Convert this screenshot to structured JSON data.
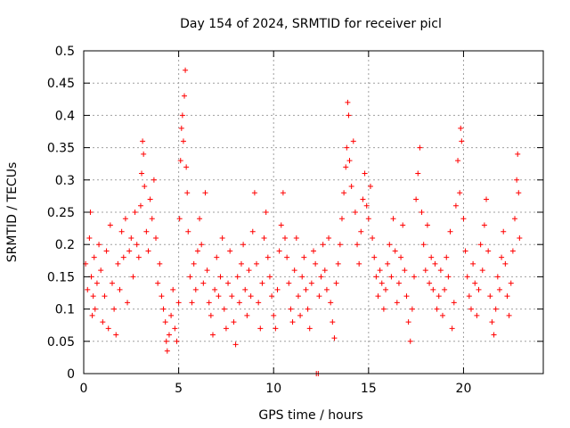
{
  "colors": {
    "series": "#ff0000",
    "axis": "#000000",
    "grid": "#a0a0a0"
  },
  "chart_data": {
    "type": "scatter",
    "title": "Day 154 of 2024, SRMTID for receiver picl",
    "xlabel": "GPS time / hours",
    "ylabel": "SRMTID / TECUs",
    "xlim": [
      0,
      24.2
    ],
    "ylim": [
      0,
      0.5
    ],
    "xticks": [
      0,
      5,
      10,
      15,
      20
    ],
    "yticks": [
      0,
      0.05,
      0.1,
      0.15,
      0.2,
      0.25,
      0.3,
      0.35,
      0.4,
      0.45,
      0.5
    ],
    "xtick_labels": [
      "0",
      "5",
      "10",
      "15",
      "20"
    ],
    "ytick_labels": [
      "0",
      "0.05",
      "0.1",
      "0.15",
      "0.2",
      "0.25",
      "0.3",
      "0.35",
      "0.4",
      "0.45",
      "0.5"
    ],
    "grid": true,
    "marker": "plus",
    "series": [
      {
        "name": "SRMTID",
        "points": [
          [
            0.1,
            0.17
          ],
          [
            0.2,
            0.13
          ],
          [
            0.3,
            0.21
          ],
          [
            0.35,
            0.25
          ],
          [
            0.4,
            0.15
          ],
          [
            0.45,
            0.09
          ],
          [
            0.5,
            0.12
          ],
          [
            0.55,
            0.18
          ],
          [
            0.6,
            0.1
          ],
          [
            0.7,
            0.14
          ],
          [
            0.8,
            0.2
          ],
          [
            0.9,
            0.16
          ],
          [
            1.0,
            0.08
          ],
          [
            1.1,
            0.12
          ],
          [
            1.2,
            0.19
          ],
          [
            1.3,
            0.07
          ],
          [
            1.4,
            0.23
          ],
          [
            1.5,
            0.14
          ],
          [
            1.6,
            0.1
          ],
          [
            1.7,
            0.06
          ],
          [
            1.8,
            0.17
          ],
          [
            1.9,
            0.13
          ],
          [
            2.0,
            0.22
          ],
          [
            2.1,
            0.18
          ],
          [
            2.2,
            0.24
          ],
          [
            2.3,
            0.11
          ],
          [
            2.4,
            0.19
          ],
          [
            2.5,
            0.21
          ],
          [
            2.6,
            0.15
          ],
          [
            2.7,
            0.25
          ],
          [
            2.8,
            0.2
          ],
          [
            2.9,
            0.18
          ],
          [
            3.0,
            0.26
          ],
          [
            3.05,
            0.31
          ],
          [
            3.1,
            0.36
          ],
          [
            3.15,
            0.34
          ],
          [
            3.2,
            0.29
          ],
          [
            3.3,
            0.22
          ],
          [
            3.4,
            0.19
          ],
          [
            3.5,
            0.27
          ],
          [
            3.6,
            0.24
          ],
          [
            3.7,
            0.3
          ],
          [
            3.8,
            0.21
          ],
          [
            3.9,
            0.14
          ],
          [
            4.0,
            0.17
          ],
          [
            4.1,
            0.12
          ],
          [
            4.2,
            0.1
          ],
          [
            4.3,
            0.08
          ],
          [
            4.35,
            0.05
          ],
          [
            4.4,
            0.035
          ],
          [
            4.5,
            0.06
          ],
          [
            4.6,
            0.09
          ],
          [
            4.7,
            0.13
          ],
          [
            4.8,
            0.07
          ],
          [
            4.9,
            0.05
          ],
          [
            5.0,
            0.11
          ],
          [
            5.05,
            0.24
          ],
          [
            5.1,
            0.33
          ],
          [
            5.15,
            0.38
          ],
          [
            5.2,
            0.4
          ],
          [
            5.25,
            0.36
          ],
          [
            5.3,
            0.43
          ],
          [
            5.35,
            0.47
          ],
          [
            5.4,
            0.32
          ],
          [
            5.45,
            0.28
          ],
          [
            5.5,
            0.22
          ],
          [
            5.6,
            0.15
          ],
          [
            5.7,
            0.11
          ],
          [
            5.8,
            0.17
          ],
          [
            5.9,
            0.13
          ],
          [
            6.0,
            0.19
          ],
          [
            6.1,
            0.24
          ],
          [
            6.2,
            0.2
          ],
          [
            6.3,
            0.14
          ],
          [
            6.4,
            0.28
          ],
          [
            6.5,
            0.16
          ],
          [
            6.6,
            0.11
          ],
          [
            6.7,
            0.09
          ],
          [
            6.8,
            0.06
          ],
          [
            6.9,
            0.13
          ],
          [
            7.0,
            0.18
          ],
          [
            7.1,
            0.12
          ],
          [
            7.2,
            0.15
          ],
          [
            7.3,
            0.21
          ],
          [
            7.4,
            0.1
          ],
          [
            7.5,
            0.07
          ],
          [
            7.6,
            0.14
          ],
          [
            7.7,
            0.19
          ],
          [
            7.8,
            0.12
          ],
          [
            7.9,
            0.08
          ],
          [
            8.0,
            0.045
          ],
          [
            8.1,
            0.15
          ],
          [
            8.2,
            0.11
          ],
          [
            8.3,
            0.17
          ],
          [
            8.4,
            0.2
          ],
          [
            8.5,
            0.13
          ],
          [
            8.6,
            0.09
          ],
          [
            8.7,
            0.16
          ],
          [
            8.8,
            0.12
          ],
          [
            8.9,
            0.22
          ],
          [
            9.0,
            0.28
          ],
          [
            9.1,
            0.17
          ],
          [
            9.2,
            0.11
          ],
          [
            9.3,
            0.07
          ],
          [
            9.4,
            0.14
          ],
          [
            9.5,
            0.21
          ],
          [
            9.6,
            0.25
          ],
          [
            9.7,
            0.18
          ],
          [
            9.8,
            0.15
          ],
          [
            9.9,
            0.12
          ],
          [
            10.0,
            0.09
          ],
          [
            10.1,
            0.07
          ],
          [
            10.2,
            0.13
          ],
          [
            10.3,
            0.19
          ],
          [
            10.4,
            0.23
          ],
          [
            10.5,
            0.28
          ],
          [
            10.6,
            0.21
          ],
          [
            10.7,
            0.18
          ],
          [
            10.8,
            0.14
          ],
          [
            10.9,
            0.1
          ],
          [
            11.0,
            0.08
          ],
          [
            11.1,
            0.16
          ],
          [
            11.2,
            0.21
          ],
          [
            11.3,
            0.12
          ],
          [
            11.4,
            0.09
          ],
          [
            11.5,
            0.15
          ],
          [
            11.6,
            0.18
          ],
          [
            11.7,
            0.13
          ],
          [
            11.8,
            0.1
          ],
          [
            11.9,
            0.07
          ],
          [
            12.0,
            0.14
          ],
          [
            12.1,
            0.19
          ],
          [
            12.2,
            0.17
          ],
          [
            12.25,
            0.0
          ],
          [
            12.35,
            0.0
          ],
          [
            12.4,
            0.12
          ],
          [
            12.5,
            0.15
          ],
          [
            12.6,
            0.2
          ],
          [
            12.7,
            0.16
          ],
          [
            12.8,
            0.13
          ],
          [
            12.9,
            0.21
          ],
          [
            13.0,
            0.11
          ],
          [
            13.1,
            0.08
          ],
          [
            13.2,
            0.055
          ],
          [
            13.3,
            0.14
          ],
          [
            13.4,
            0.17
          ],
          [
            13.5,
            0.2
          ],
          [
            13.6,
            0.24
          ],
          [
            13.7,
            0.28
          ],
          [
            13.8,
            0.32
          ],
          [
            13.85,
            0.35
          ],
          [
            13.9,
            0.42
          ],
          [
            13.95,
            0.4
          ],
          [
            14.0,
            0.33
          ],
          [
            14.1,
            0.29
          ],
          [
            14.2,
            0.36
          ],
          [
            14.3,
            0.25
          ],
          [
            14.4,
            0.2
          ],
          [
            14.5,
            0.17
          ],
          [
            14.6,
            0.22
          ],
          [
            14.7,
            0.27
          ],
          [
            14.8,
            0.31
          ],
          [
            14.9,
            0.26
          ],
          [
            15.0,
            0.24
          ],
          [
            15.1,
            0.29
          ],
          [
            15.2,
            0.21
          ],
          [
            15.3,
            0.18
          ],
          [
            15.4,
            0.15
          ],
          [
            15.5,
            0.12
          ],
          [
            15.6,
            0.16
          ],
          [
            15.7,
            0.14
          ],
          [
            15.8,
            0.1
          ],
          [
            15.9,
            0.13
          ],
          [
            16.0,
            0.17
          ],
          [
            16.1,
            0.2
          ],
          [
            16.2,
            0.15
          ],
          [
            16.3,
            0.24
          ],
          [
            16.4,
            0.19
          ],
          [
            16.5,
            0.11
          ],
          [
            16.6,
            0.14
          ],
          [
            16.7,
            0.18
          ],
          [
            16.8,
            0.23
          ],
          [
            16.9,
            0.16
          ],
          [
            17.0,
            0.12
          ],
          [
            17.1,
            0.08
          ],
          [
            17.2,
            0.05
          ],
          [
            17.3,
            0.1
          ],
          [
            17.4,
            0.15
          ],
          [
            17.5,
            0.27
          ],
          [
            17.6,
            0.31
          ],
          [
            17.7,
            0.35
          ],
          [
            17.8,
            0.25
          ],
          [
            17.9,
            0.2
          ],
          [
            18.0,
            0.16
          ],
          [
            18.1,
            0.23
          ],
          [
            18.2,
            0.14
          ],
          [
            18.3,
            0.18
          ],
          [
            18.4,
            0.13
          ],
          [
            18.5,
            0.17
          ],
          [
            18.6,
            0.1
          ],
          [
            18.7,
            0.12
          ],
          [
            18.8,
            0.16
          ],
          [
            18.9,
            0.09
          ],
          [
            19.0,
            0.13
          ],
          [
            19.1,
            0.18
          ],
          [
            19.2,
            0.15
          ],
          [
            19.3,
            0.22
          ],
          [
            19.4,
            0.07
          ],
          [
            19.5,
            0.11
          ],
          [
            19.6,
            0.26
          ],
          [
            19.7,
            0.33
          ],
          [
            19.8,
            0.28
          ],
          [
            19.85,
            0.38
          ],
          [
            19.9,
            0.36
          ],
          [
            20.0,
            0.24
          ],
          [
            20.1,
            0.19
          ],
          [
            20.2,
            0.15
          ],
          [
            20.3,
            0.12
          ],
          [
            20.4,
            0.1
          ],
          [
            20.5,
            0.17
          ],
          [
            20.6,
            0.14
          ],
          [
            20.7,
            0.09
          ],
          [
            20.8,
            0.13
          ],
          [
            20.9,
            0.2
          ],
          [
            21.0,
            0.16
          ],
          [
            21.1,
            0.23
          ],
          [
            21.2,
            0.27
          ],
          [
            21.3,
            0.19
          ],
          [
            21.4,
            0.12
          ],
          [
            21.5,
            0.08
          ],
          [
            21.6,
            0.06
          ],
          [
            21.7,
            0.1
          ],
          [
            21.8,
            0.15
          ],
          [
            21.9,
            0.13
          ],
          [
            22.0,
            0.18
          ],
          [
            22.1,
            0.22
          ],
          [
            22.2,
            0.17
          ],
          [
            22.3,
            0.12
          ],
          [
            22.4,
            0.09
          ],
          [
            22.5,
            0.14
          ],
          [
            22.6,
            0.19
          ],
          [
            22.7,
            0.24
          ],
          [
            22.8,
            0.3
          ],
          [
            22.85,
            0.34
          ],
          [
            22.9,
            0.28
          ],
          [
            22.95,
            0.21
          ]
        ]
      }
    ]
  }
}
